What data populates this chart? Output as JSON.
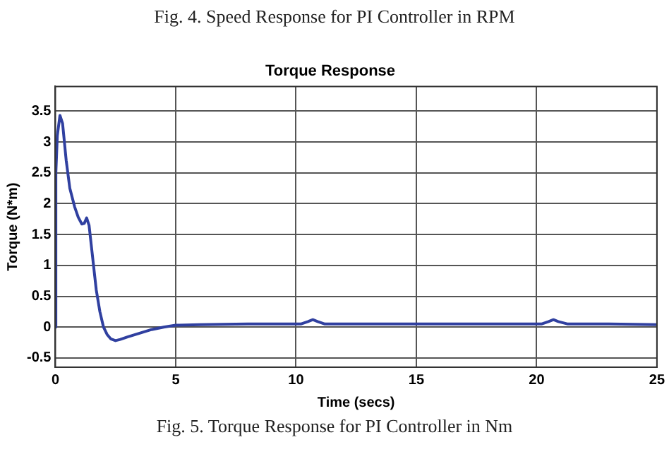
{
  "chart_data": {
    "type": "line",
    "title": "Torque Response",
    "xlabel": "Time (secs)",
    "ylabel": "Torque (N*m)",
    "annotations": [
      "Fig. 4.  Speed Response for PI Controller in RPM",
      "Fig. 5.  Torque Response for PI Controller in Nm"
    ],
    "xlim": [
      0,
      25
    ],
    "ylim": [
      -0.65,
      3.9
    ],
    "xticks": [
      0,
      5,
      10,
      15,
      20,
      25
    ],
    "yticks": [
      -0.5,
      0,
      0.5,
      1,
      1.5,
      2,
      2.5,
      3,
      3.5
    ],
    "grid": true,
    "marker": "none",
    "line_style": "solid",
    "series": [
      {
        "color": "#3040a0",
        "x": [
          0,
          0.02,
          0.08,
          0.19,
          0.3,
          0.45,
          0.6,
          0.8,
          0.95,
          1.1,
          1.2,
          1.3,
          1.4,
          1.5,
          1.6,
          1.7,
          1.85,
          2.0,
          2.15,
          2.3,
          2.5,
          2.7,
          3.0,
          3.5,
          4.0,
          4.5,
          5.0,
          6.0,
          8.0,
          10.2,
          10.5,
          10.7,
          10.9,
          11.2,
          13,
          15,
          18,
          20.2,
          20.5,
          20.7,
          20.9,
          21.3,
          23,
          25
        ],
        "values": [
          0,
          2.5,
          3.1,
          3.43,
          3.3,
          2.7,
          2.25,
          1.95,
          1.78,
          1.67,
          1.68,
          1.77,
          1.65,
          1.3,
          0.95,
          0.6,
          0.25,
          0.0,
          -0.12,
          -0.19,
          -0.22,
          -0.2,
          -0.16,
          -0.1,
          -0.04,
          0.0,
          0.03,
          0.04,
          0.05,
          0.05,
          0.09,
          0.12,
          0.09,
          0.05,
          0.05,
          0.05,
          0.05,
          0.05,
          0.09,
          0.12,
          0.09,
          0.05,
          0.05,
          0.04
        ]
      }
    ]
  }
}
